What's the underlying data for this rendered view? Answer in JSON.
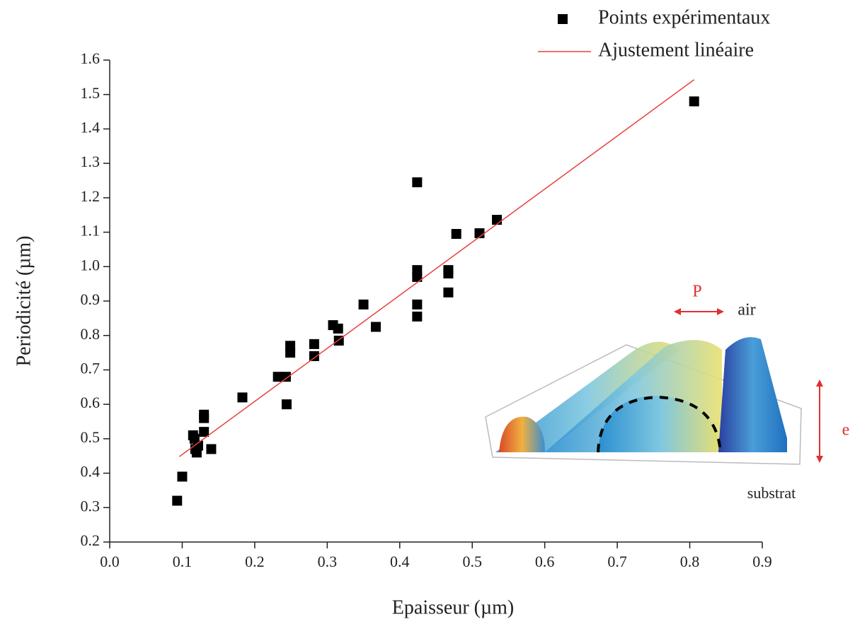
{
  "chart_data": {
    "type": "scatter",
    "xlabel": "Epaisseur (µm)",
    "ylabel": "Periodicité (µm)",
    "xlim": [
      0,
      0.9
    ],
    "ylim": [
      0.2,
      1.6
    ],
    "xticks": [
      {
        "value": 0,
        "label": "0.0"
      },
      0.1,
      0.2,
      0.3,
      0.4,
      0.5,
      0.6,
      0.7,
      0.8,
      0.9
    ],
    "yticks": [
      0.2,
      0.3,
      0.4,
      0.5,
      0.6,
      0.7,
      0.8,
      0.9,
      {
        "value": 1,
        "label": "1.0"
      },
      1.1,
      1.2,
      1.3,
      1.4,
      1.5,
      1.6
    ],
    "grid": false,
    "legend": "top-right",
    "series": [
      {
        "name": "Points expérimentaux",
        "type": "scatter",
        "color": "#000000",
        "x": [
          0.093,
          0.1,
          0.115,
          0.117,
          0.118,
          0.12,
          0.122,
          0.13,
          0.13,
          0.13,
          0.14,
          0.183,
          0.232,
          0.243,
          0.244,
          0.249,
          0.249,
          0.282,
          0.282,
          0.308,
          0.315,
          0.316,
          0.35,
          0.367,
          0.424,
          0.424,
          0.424,
          0.424,
          0.424,
          0.467,
          0.467,
          0.467,
          0.478,
          0.51,
          0.534,
          0.806
        ],
        "values": [
          0.32,
          0.39,
          0.51,
          0.5,
          0.47,
          0.46,
          0.48,
          0.52,
          0.57,
          0.56,
          0.47,
          0.62,
          0.68,
          0.68,
          0.6,
          0.77,
          0.75,
          0.775,
          0.74,
          0.83,
          0.82,
          0.785,
          0.89,
          0.825,
          1.245,
          0.99,
          0.97,
          0.89,
          0.855,
          0.99,
          0.98,
          0.925,
          1.095,
          1.097,
          1.136,
          1.48
        ]
      },
      {
        "name": "Ajustement linéaire",
        "type": "line",
        "color": "#e8413a",
        "x": [
          0.096,
          0.806
        ],
        "values": [
          0.448,
          1.543
        ]
      }
    ],
    "annotations": [
      "P",
      "air",
      "e",
      "substrat"
    ]
  }
}
